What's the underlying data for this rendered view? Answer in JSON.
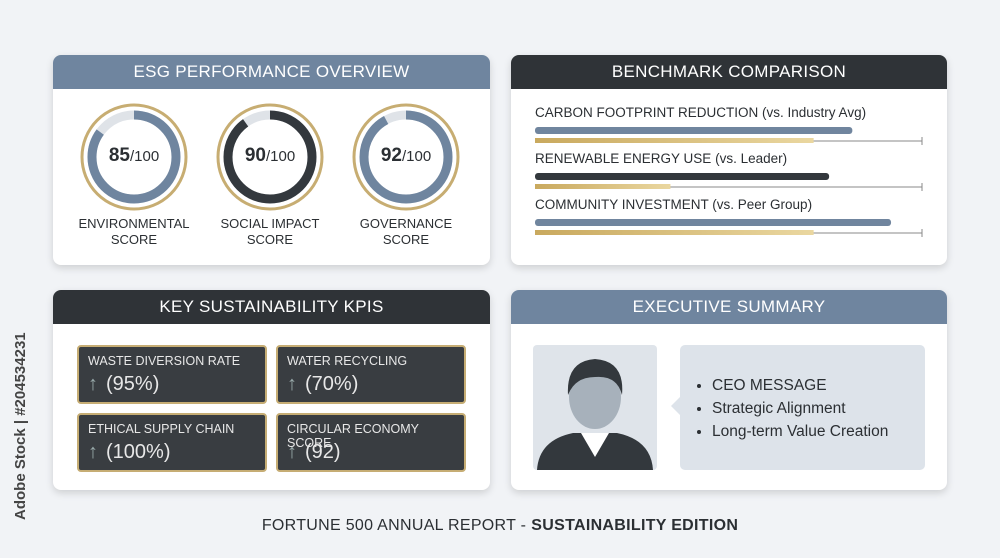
{
  "watermark": "Adobe Stock | #204534231",
  "esg_panel": {
    "title": "ESG PERFORMANCE OVERVIEW",
    "out_of": {
      "value": 100,
      "label": "/100"
    },
    "scores": [
      {
        "value": 85,
        "label": "ENVIRONMENTAL SCORE",
        "color": "#6f859f"
      },
      {
        "value": 90,
        "label": "SOCIAL IMPACT SCORE",
        "color": "#33383d"
      },
      {
        "value": 92,
        "label": "GOVERNANCE SCORE",
        "color": "#6f859f"
      }
    ]
  },
  "benchmark_panel": {
    "title": "BENCHMARK COMPARISON",
    "xlim": [
      0,
      100
    ],
    "items": [
      {
        "label": "CARBON FOOTPRINT REDUCTION",
        "context": "(vs. Industry Avg)",
        "value": 82,
        "benchmark": 72,
        "color": "#70859e"
      },
      {
        "label": "RENEWABLE ENERGY USE",
        "context": "(vs. Leader)",
        "value": 76,
        "benchmark": 35,
        "color": "#33383d"
      },
      {
        "label": "COMMUNITY INVESTMENT",
        "context": "(vs. Peer Group)",
        "value": 92,
        "benchmark": 72,
        "color": "#70859e"
      }
    ]
  },
  "kpi_panel": {
    "title": "KEY SUSTAINABILITY KPIS",
    "kpis": [
      {
        "label": "WASTE DIVERSION RATE",
        "value": "(95%)"
      },
      {
        "label": "WATER RECYCLING",
        "value": "(70%)"
      },
      {
        "label": "ETHICAL SUPPLY CHAIN",
        "value": "(100%)"
      },
      {
        "label": "CIRCULAR ECONOMY SCORE",
        "value": "(92)"
      }
    ]
  },
  "summary_panel": {
    "title": "EXECUTIVE SUMMARY",
    "bullets": [
      "CEO MESSAGE",
      "Strategic Alignment",
      "Long-term Value Creation"
    ]
  },
  "footer": {
    "text": "FORTUNE 500 ANNUAL REPORT -",
    "emphasis": "SUSTAINABILITY EDITION"
  }
}
